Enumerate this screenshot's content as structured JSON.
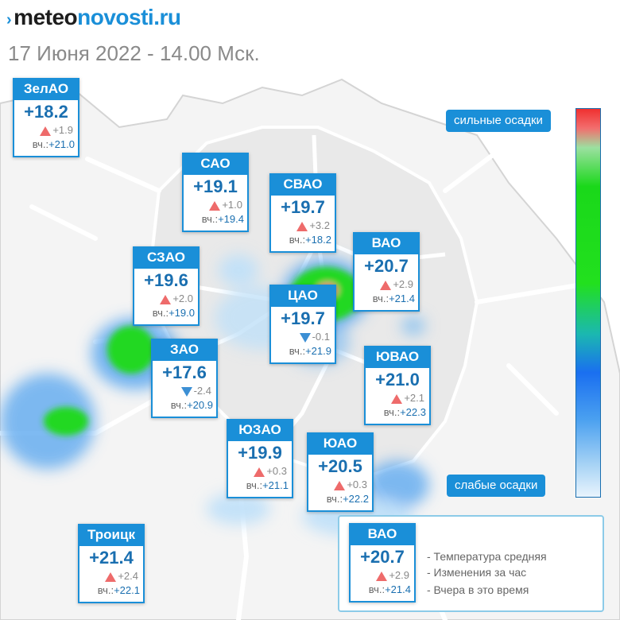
{
  "header": {
    "logo_part1": "meteo",
    "logo_part2": "novosti.ru",
    "logo_mark": "›",
    "date_line": "17 Июня 2022 - 14.00 Мск."
  },
  "yesterday_label": "вч.:",
  "districts": [
    {
      "id": "zelao",
      "name": "ЗелАО",
      "temp": "+18.2",
      "change": "+1.9",
      "trend": "up",
      "yesterday": "+21.0"
    },
    {
      "id": "sao",
      "name": "САО",
      "temp": "+19.1",
      "change": "+1.0",
      "trend": "up",
      "yesterday": "+19.4"
    },
    {
      "id": "svao",
      "name": "СВАО",
      "temp": "+19.7",
      "change": "+3.2",
      "trend": "up",
      "yesterday": "+18.2"
    },
    {
      "id": "vao",
      "name": "ВАО",
      "temp": "+20.7",
      "change": "+2.9",
      "trend": "up",
      "yesterday": "+21.4"
    },
    {
      "id": "szao",
      "name": "СЗАО",
      "temp": "+19.6",
      "change": "+2.0",
      "trend": "up",
      "yesterday": "+19.0"
    },
    {
      "id": "tsao",
      "name": "ЦАО",
      "temp": "+19.7",
      "change": "-0.1",
      "trend": "down",
      "yesterday": "+21.9"
    },
    {
      "id": "zao",
      "name": "ЗАО",
      "temp": "+17.6",
      "change": "-2.4",
      "trend": "down",
      "yesterday": "+20.9"
    },
    {
      "id": "yuvao",
      "name": "ЮВАО",
      "temp": "+21.0",
      "change": "+2.1",
      "trend": "up",
      "yesterday": "+22.3"
    },
    {
      "id": "yuzao",
      "name": "ЮЗАО",
      "temp": "+19.9",
      "change": "+0.3",
      "trend": "up",
      "yesterday": "+21.1"
    },
    {
      "id": "yuao",
      "name": "ЮАО",
      "temp": "+20.5",
      "change": "+0.3",
      "trend": "up",
      "yesterday": "+22.2"
    },
    {
      "id": "troitsk",
      "name": "Троицк",
      "temp": "+21.4",
      "change": "+2.4",
      "trend": "up",
      "yesterday": "+22.1"
    }
  ],
  "scale": {
    "top_label": "сильные осадки",
    "bottom_label": "слабые осадки"
  },
  "legend": {
    "sample": {
      "name": "ВАО",
      "temp": "+20.7",
      "change": "+2.9",
      "trend": "up",
      "yesterday": "+21.4"
    },
    "lines": [
      "- Температура средняя",
      "- Изменения за час",
      "- Вчера в это время"
    ]
  },
  "colors": {
    "accent": "#1a8fd8",
    "temp_text": "#1a6fb0",
    "trend_up": "#ee6b6b",
    "trend_down": "#3c8fd4"
  },
  "icons": {
    "trend_up": "triangle-up-icon",
    "trend_down": "triangle-down-icon"
  }
}
